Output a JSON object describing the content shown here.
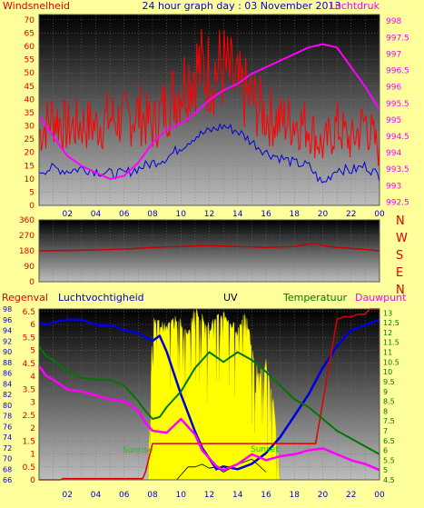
{
  "header": {
    "title": "24 hour graph day : 03 November 2013",
    "left_label": "Windsnelheid",
    "right_label": "Luchtdruk"
  },
  "x_ticks": [
    "02",
    "04",
    "06",
    "08",
    "10",
    "12",
    "14",
    "16",
    "18",
    "20",
    "22",
    "00"
  ],
  "colors": {
    "background": "#ffff9c",
    "wind": "#ff0000",
    "gust": "#ff0000",
    "pressure": "#ff00ff",
    "humidity": "#0000dd",
    "rain": "#dd0000",
    "temperature": "#007700",
    "dewpoint": "#ff00ff",
    "uv": "#ffff00",
    "direction": "#cc0000"
  },
  "chart_data": [
    {
      "type": "line",
      "title": "24 hour graph day : 03 November 2013",
      "x_unit": "hour",
      "x_range": [
        0,
        24
      ],
      "left_axis": {
        "label": "Windsnelheid",
        "ticks": [
          0,
          5,
          10,
          15,
          20,
          25,
          30,
          35,
          40,
          45,
          50,
          55,
          60,
          65,
          70
        ],
        "range": [
          0,
          72
        ]
      },
      "right_axis": {
        "label": "Luchtdruk",
        "ticks": [
          "998",
          "997.5",
          "997",
          "996.5",
          "996",
          "995.5",
          "995",
          "994.5",
          "994",
          "993.5",
          "993",
          "992.5"
        ],
        "range": [
          992.4,
          998.2
        ]
      },
      "series": [
        {
          "key": "gust",
          "axis": "left",
          "x": [
            0,
            1,
            2,
            3,
            4,
            5,
            6,
            7,
            8,
            9,
            10,
            11,
            12,
            13,
            14,
            15,
            16,
            17,
            18,
            19,
            20,
            21,
            22,
            23,
            24
          ],
          "y": [
            27,
            34,
            29,
            31,
            30,
            33,
            32,
            35,
            30,
            38,
            45,
            52,
            50,
            52,
            44,
            40,
            34,
            32,
            32,
            30,
            22,
            30,
            24,
            32,
            20
          ]
        },
        {
          "key": "wind",
          "axis": "left",
          "x": [
            0,
            1,
            2,
            3,
            4,
            5,
            6,
            7,
            8,
            9,
            10,
            11,
            12,
            13,
            14,
            15,
            16,
            17,
            18,
            19,
            20,
            21,
            22,
            23,
            24
          ],
          "y": [
            13,
            14,
            13,
            14,
            13,
            12,
            12,
            14,
            16,
            18,
            22,
            26,
            28,
            30,
            28,
            24,
            20,
            18,
            16,
            15,
            8,
            14,
            13,
            15,
            11
          ]
        },
        {
          "key": "pressure",
          "axis": "right",
          "x": [
            0,
            1,
            2,
            3,
            4,
            5,
            6,
            7,
            8,
            9,
            10,
            11,
            12,
            13,
            14,
            15,
            16,
            17,
            18,
            19,
            20,
            21,
            22,
            23,
            24
          ],
          "y": [
            995.1,
            994.5,
            993.9,
            993.6,
            993.4,
            993.2,
            993.3,
            993.7,
            994.3,
            994.7,
            994.9,
            995.2,
            995.6,
            995.9,
            996.1,
            996.4,
            996.6,
            996.8,
            997.0,
            997.2,
            997.3,
            997.2,
            996.6,
            996.0,
            995.3
          ]
        }
      ]
    },
    {
      "type": "line",
      "title": "",
      "x_unit": "hour",
      "x_range": [
        0,
        24
      ],
      "left_axis": {
        "label": "",
        "ticks": [
          0,
          90,
          180,
          270,
          360
        ],
        "range": [
          0,
          360
        ]
      },
      "right_labels": [
        "N",
        "W",
        "S",
        "E",
        "N"
      ],
      "series": [
        {
          "key": "direction",
          "axis": "left",
          "x": [
            0,
            2,
            4,
            6,
            8,
            10,
            12,
            14,
            16,
            18,
            19.5,
            20,
            21,
            22,
            24
          ],
          "y": [
            180,
            182,
            185,
            190,
            200,
            205,
            210,
            205,
            200,
            205,
            225,
            210,
            200,
            195,
            180
          ]
        }
      ]
    },
    {
      "type": "line",
      "title": "",
      "x_unit": "hour",
      "x_range": [
        0,
        24
      ],
      "legend": [
        "Regenval",
        "Luchtvochtigheid",
        "UV",
        "Temperatuur",
        "Dauwpunt"
      ],
      "rain_axis": {
        "ticks": [
          "0",
          "0.5",
          "1",
          "1.5",
          "2",
          "2.5",
          "3",
          "3.5",
          "4",
          "4.5",
          "5",
          "5.5",
          "6",
          "6.5"
        ],
        "range": [
          0,
          6.6
        ]
      },
      "humidity_axis": {
        "ticks": [
          66,
          68,
          70,
          72,
          74,
          76,
          78,
          80,
          82,
          84,
          86,
          88,
          90,
          92,
          94,
          96,
          98
        ],
        "range": [
          66,
          98
        ]
      },
      "temperature_axis": {
        "ticks": [
          "4.5",
          "5",
          "5.5",
          "6",
          "6.5",
          "7",
          "7.5",
          "8",
          "8.5",
          "9",
          "9.5",
          "10",
          "10.5",
          "11",
          "11.5",
          "12",
          "12.5",
          "13"
        ],
        "range": [
          4.5,
          13.2
        ]
      },
      "annotations": [
        "Sunrise",
        "Sunset"
      ],
      "series": [
        {
          "key": "uv",
          "name": "UV",
          "axis": "rain",
          "x": [
            7.7,
            8,
            9,
            9.5,
            10,
            10.5,
            11,
            12,
            13,
            14,
            14.5,
            15,
            15.5,
            16,
            16.5,
            17.0
          ],
          "y": [
            0,
            6.2,
            5.8,
            6.4,
            6.0,
            5.5,
            6.6,
            5.9,
            6.4,
            5.7,
            6.5,
            5.0,
            4.0,
            4.5,
            3.0,
            0
          ]
        },
        {
          "key": "solar",
          "name": "",
          "axis": "rain",
          "x": [
            9.7,
            10.5,
            11,
            11.5,
            12,
            12.5,
            13,
            14,
            15,
            16
          ],
          "y": [
            0,
            0.5,
            0.5,
            0.6,
            0.45,
            0.5,
            0.3,
            0.6,
            0.8,
            0.3
          ]
        },
        {
          "key": "humidity",
          "name": "Luchtvochtigheid",
          "axis": "humidity",
          "x": [
            0,
            0.5,
            1,
            2,
            3,
            4,
            5,
            6,
            7,
            8,
            8.5,
            9,
            10,
            11,
            11.5,
            12,
            12.5,
            13,
            14,
            15,
            16,
            17,
            18,
            19,
            20,
            21,
            22,
            23,
            24
          ],
          "y": [
            95.5,
            95,
            95.5,
            96,
            96,
            95,
            95,
            94,
            93.5,
            92,
            93,
            90,
            82,
            75,
            72,
            70,
            68,
            68.5,
            68,
            69,
            71,
            74,
            78,
            82,
            87,
            91,
            94,
            95,
            96
          ]
        },
        {
          "key": "rain",
          "name": "Regenval",
          "axis": "rain",
          "x": [
            0,
            1.5,
            1.7,
            7.3,
            7.5,
            8,
            12,
            16,
            18,
            19.5,
            20,
            21,
            21.5,
            22,
            22.5,
            23,
            23.3,
            24
          ],
          "y": [
            0,
            0,
            0.05,
            0.05,
            0.3,
            1.4,
            1.4,
            1.4,
            1.4,
            1.4,
            3,
            6.2,
            6.3,
            6.3,
            6.4,
            6.4,
            6.6,
            6.6
          ]
        },
        {
          "key": "temperature",
          "name": "Temperatuur",
          "axis": "temperature",
          "x": [
            0,
            0.5,
            1,
            2,
            3,
            4,
            5,
            6,
            7,
            7.5,
            8,
            8.5,
            9,
            10,
            11,
            12,
            13,
            14,
            15,
            16,
            17,
            18,
            19,
            20,
            21,
            22,
            23,
            24
          ],
          "y": [
            11.3,
            10.8,
            10.6,
            10.0,
            9.7,
            9.6,
            9.6,
            9.3,
            8.5,
            8.0,
            7.6,
            7.7,
            8.2,
            9.0,
            10.2,
            11.0,
            10.5,
            11.0,
            10.6,
            10.0,
            9.3,
            8.6,
            8.2,
            7.6,
            7.0,
            6.6,
            6.2,
            5.8
          ]
        },
        {
          "key": "dewpoint",
          "name": "Dauwpunt",
          "axis": "temperature",
          "x": [
            0,
            0.5,
            1,
            2,
            3,
            4,
            5,
            6,
            7,
            7.5,
            8,
            9,
            10,
            11,
            11.5,
            12,
            12.5,
            13,
            14,
            15,
            16,
            17,
            18,
            19,
            20,
            21,
            22,
            23,
            24
          ],
          "y": [
            10.3,
            9.8,
            9.6,
            9.1,
            9.0,
            8.8,
            8.6,
            8.5,
            8.0,
            7.4,
            7.0,
            6.9,
            7.6,
            6.8,
            6.0,
            5.6,
            5.2,
            5.0,
            5.3,
            5.8,
            5.5,
            5.7,
            5.8,
            6.0,
            6.1,
            5.8,
            5.5,
            5.3,
            5.0
          ]
        }
      ]
    }
  ]
}
